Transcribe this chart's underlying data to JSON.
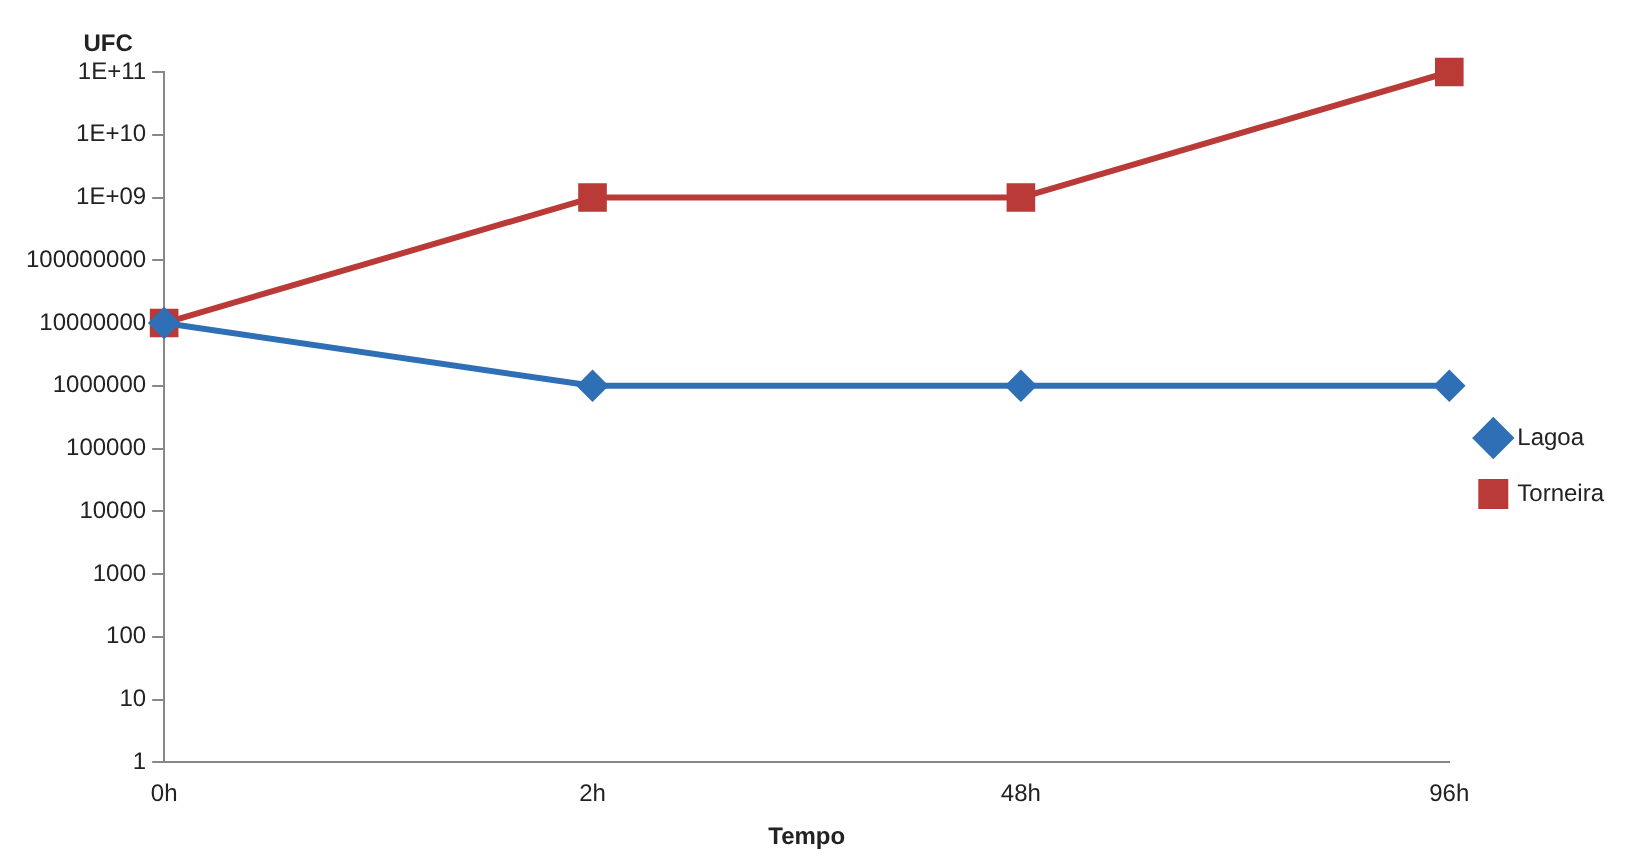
{
  "chart_data": {
    "type": "line",
    "xlabel": "Tempo",
    "ylabel": "UFC",
    "categories": [
      "0h",
      "2h",
      "48h",
      "96h"
    ],
    "series": [
      {
        "name": "Lagoa",
        "color": "#2f6fb5",
        "marker": "diamond",
        "values": [
          10000000,
          1000000,
          1000000,
          1000000
        ]
      },
      {
        "name": "Torneira",
        "color": "#b93a36",
        "marker": "square",
        "values": [
          10000000,
          1000000000,
          1000000000,
          100000000000
        ]
      }
    ],
    "log": "y",
    "ylim": [
      1,
      100000000000
    ],
    "yticks": [
      1,
      10,
      100,
      1000,
      10000,
      100000,
      1000000,
      10000000,
      100000000,
      {
        "value": 1000000000,
        "label": "1E+09"
      },
      {
        "value": 10000000000,
        "label": "1E+10"
      },
      {
        "value": 100000000000,
        "label": "1E+11"
      }
    ],
    "grid": false,
    "legend": "right",
    "line_style": "solid"
  }
}
